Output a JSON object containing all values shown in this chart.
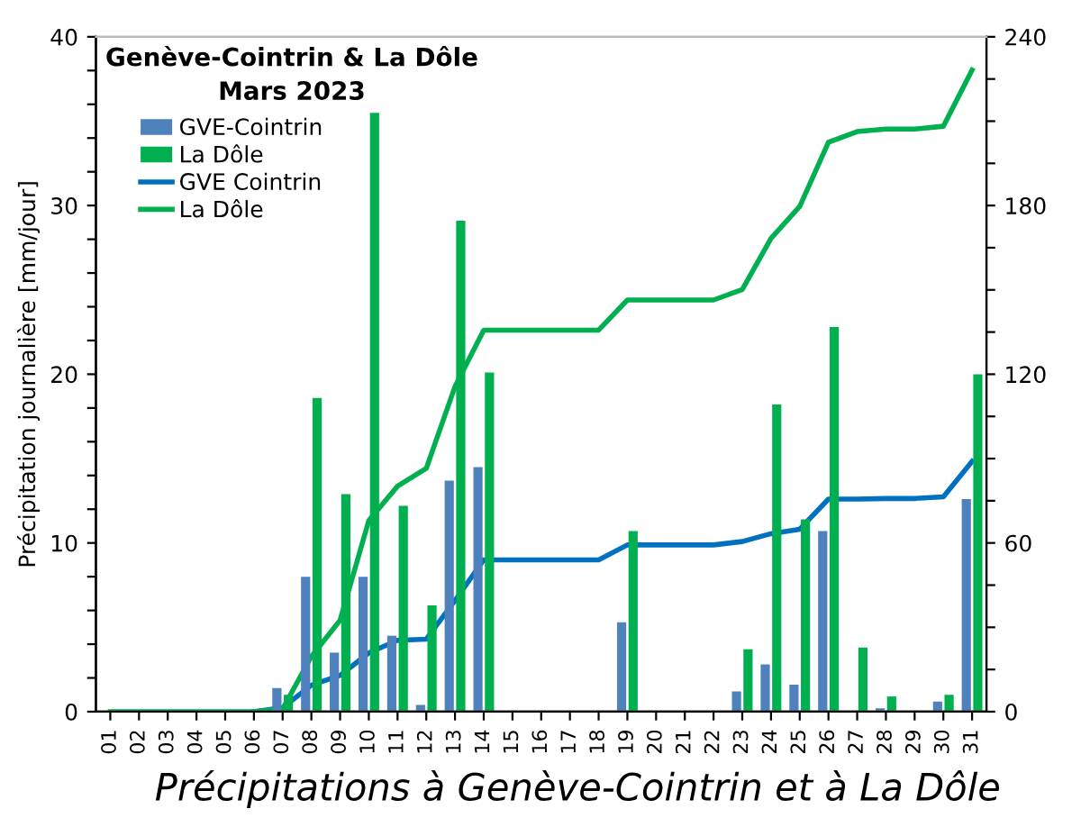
{
  "chart_data": {
    "type": "bar",
    "title": "Genève-Cointrin & La Dôle\nMars 2023",
    "ylabel": "Précipitation journalière [mm/jour]",
    "annotations": [
      "Précipitations à Genève-Cointrin et à La Dôle"
    ],
    "categories": [
      "01",
      "02",
      "03",
      "04",
      "05",
      "06",
      "07",
      "08",
      "09",
      "10",
      "11",
      "12",
      "13",
      "14",
      "15",
      "16",
      "17",
      "18",
      "19",
      "20",
      "21",
      "22",
      "23",
      "24",
      "25",
      "26",
      "27",
      "28",
      "29",
      "30",
      "31"
    ],
    "series": [
      {
        "name": "GVE-Cointrin",
        "color": "#4f81bd",
        "values": [
          0,
          0,
          0,
          0,
          0,
          0,
          1.4,
          8.0,
          3.5,
          8.0,
          4.5,
          0.4,
          13.7,
          14.5,
          0,
          0,
          0,
          0,
          5.3,
          0,
          0,
          0,
          1.2,
          2.8,
          1.6,
          10.7,
          0,
          0.2,
          0,
          0.6,
          12.6
        ]
      },
      {
        "name": "La Dôle",
        "color": "#00b050",
        "values": [
          0,
          0,
          0,
          0,
          0,
          0,
          1.0,
          18.6,
          12.9,
          35.5,
          12.2,
          6.3,
          29.1,
          20.1,
          0,
          0,
          0,
          0,
          10.7,
          0,
          0,
          0,
          3.7,
          18.2,
          11.4,
          22.8,
          3.8,
          0.9,
          0,
          1.0,
          20.0
        ]
      },
      {
        "name": "GVE Cointrin",
        "type": "line",
        "axis": "y2",
        "color": "#0070c0",
        "values": [
          null,
          null,
          null,
          null,
          null,
          0,
          1.4,
          9.4,
          12.9,
          20.9,
          25.4,
          25.8,
          39.5,
          54.0,
          54.0,
          54.0,
          54.0,
          54.0,
          59.3,
          59.3,
          59.3,
          59.3,
          60.5,
          63.3,
          64.9,
          75.6,
          75.6,
          75.8,
          75.8,
          76.4,
          89.0
        ]
      },
      {
        "name": "La Dôle",
        "type": "line",
        "axis": "y2",
        "color": "#00b050",
        "values": [
          0,
          0,
          0,
          0,
          0,
          0,
          1.0,
          19.6,
          32.5,
          68.0,
          80.2,
          86.5,
          115.6,
          135.7,
          135.7,
          135.7,
          135.7,
          135.7,
          146.4,
          146.4,
          146.4,
          146.4,
          150.1,
          168.3,
          179.7,
          202.5,
          206.3,
          207.2,
          207.2,
          208.2,
          228.2
        ]
      }
    ],
    "ylim": [
      0,
      40
    ],
    "yticks": [
      0,
      {
        "value": 2,
        "label": null
      },
      {
        "value": 4,
        "label": null
      },
      {
        "value": 6,
        "label": null
      },
      {
        "value": 8,
        "label": null
      },
      10,
      {
        "value": 12,
        "label": null
      },
      {
        "value": 14,
        "label": null
      },
      {
        "value": 16,
        "label": null
      },
      {
        "value": 18,
        "label": null
      },
      20,
      {
        "value": 22,
        "label": null
      },
      {
        "value": 24,
        "label": null
      },
      {
        "value": 26,
        "label": null
      },
      {
        "value": 28,
        "label": null
      },
      30,
      {
        "value": 32,
        "label": null
      },
      {
        "value": 34,
        "label": null
      },
      {
        "value": 36,
        "label": null
      },
      {
        "value": 38,
        "label": null
      },
      40
    ],
    "y2lim": [
      0,
      240
    ],
    "y2ticks": [
      0,
      {
        "value": 15,
        "label": null
      },
      {
        "value": 30,
        "label": null
      },
      {
        "value": 45,
        "label": null
      },
      60,
      {
        "value": 75,
        "label": null
      },
      {
        "value": 90,
        "label": null
      },
      {
        "value": 105,
        "label": null
      },
      120,
      {
        "value": 135,
        "label": null
      },
      {
        "value": 150,
        "label": null
      },
      {
        "value": 165,
        "label": null
      },
      180,
      {
        "value": 195,
        "label": null
      },
      {
        "value": 210,
        "label": null
      },
      {
        "value": 225,
        "label": null
      },
      240
    ],
    "grid": false,
    "legend": "top left",
    "marker": "none",
    "line_style": "solid"
  }
}
